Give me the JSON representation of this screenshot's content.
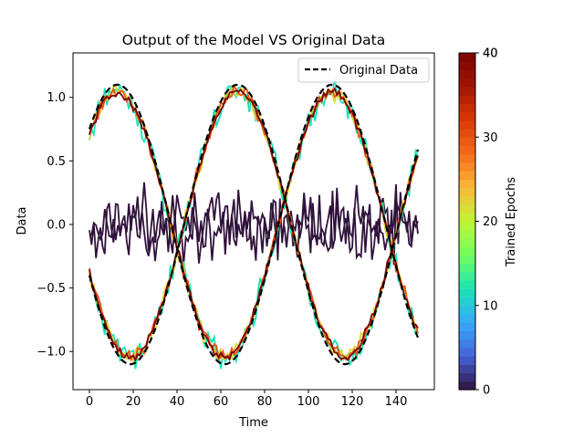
{
  "chart_data": {
    "type": "line",
    "title": "Output of the Model VS Original Data",
    "xlabel": "Time",
    "ylabel": "Data",
    "xlim": [
      -7.5,
      157.5
    ],
    "ylim": [
      -1.3,
      1.35
    ],
    "xticks": [
      0,
      20,
      40,
      60,
      80,
      100,
      120,
      140
    ],
    "yticks": [
      -1.0,
      -0.5,
      0.0,
      0.5,
      1.0
    ],
    "ytick_labels": [
      "−1.0",
      "−0.5",
      "0.0",
      "0.5",
      "1.0"
    ],
    "grid": false,
    "legend": {
      "position": "top-right",
      "entries": [
        {
          "label": "Original Data",
          "style": "dashed",
          "color": "#000000"
        }
      ]
    },
    "original_data": {
      "x_start": 0,
      "x_end": 150,
      "n_points": 151,
      "curves": [
        {
          "function": "sin",
          "amplitude": 1.1,
          "period": 98,
          "phase_x": 0.75,
          "offset": 0.0,
          "start_y": 0.75
        },
        {
          "function": "-sin",
          "amplitude": 1.1,
          "period": 98,
          "phase_x": 0.4,
          "offset": 0.0,
          "start_y": -0.4
        }
      ]
    },
    "model_outputs": [
      {
        "epoch": 0,
        "pattern": "noise around 0",
        "mean": 0.0,
        "spread": 0.4
      },
      {
        "epoch": 12,
        "pattern": "sine fit",
        "noise": 0.08
      },
      {
        "epoch": 22,
        "pattern": "sine fit",
        "noise": 0.05
      },
      {
        "epoch": 30,
        "pattern": "sine fit",
        "noise": 0.04
      },
      {
        "epoch": 40,
        "pattern": "sine fit",
        "noise": 0.03
      }
    ],
    "colorbar": {
      "label": "Trained Epochs",
      "range": [
        0,
        40
      ],
      "ticks": [
        0,
        10,
        20,
        30,
        40
      ],
      "extra_top_label": "40",
      "colormap": "turbo"
    }
  }
}
